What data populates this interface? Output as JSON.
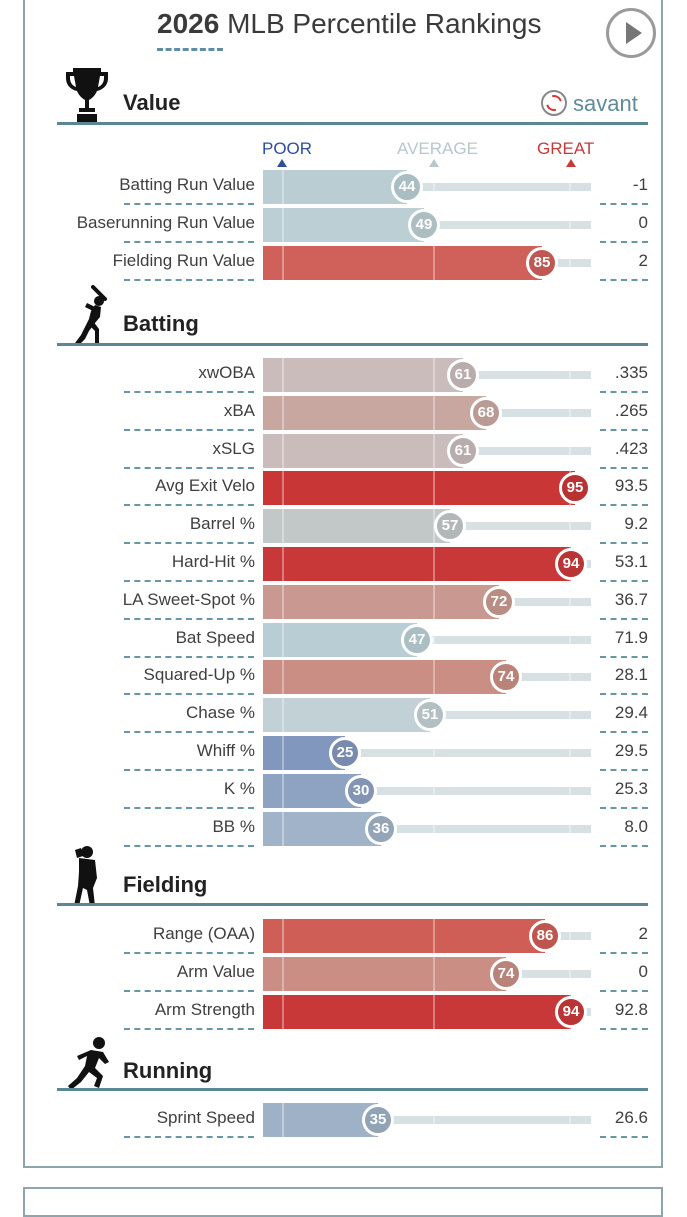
{
  "header": {
    "year": "2026",
    "title_rest": "MLB Percentile Rankings"
  },
  "brand": {
    "savant_label": "savant"
  },
  "scale": {
    "poor": "POOR",
    "average": "AVERAGE",
    "great": "GREAT"
  },
  "sections": {
    "value": {
      "title": "Value",
      "rows": [
        {
          "label": "Batting Run Value",
          "pct": 44,
          "value": "-1",
          "color": "#b9cdd3"
        },
        {
          "label": "Baserunning Run Value",
          "pct": 49,
          "value": "0",
          "color": "#bccfd4"
        },
        {
          "label": "Fielding Run Value",
          "pct": 85,
          "value": "2",
          "color": "#d0605a"
        }
      ]
    },
    "batting": {
      "title": "Batting",
      "rows": [
        {
          "label": "xwOBA",
          "pct": 61,
          "value": ".335",
          "color": "#c9bcbb"
        },
        {
          "label": "xBA",
          "pct": 68,
          "value": ".265",
          "color": "#c9a7a1"
        },
        {
          "label": "xSLG",
          "pct": 61,
          "value": ".423",
          "color": "#c9bcbb"
        },
        {
          "label": "Avg Exit Velo",
          "pct": 95,
          "value": "93.5",
          "color": "#c93636"
        },
        {
          "label": "Barrel %",
          "pct": 57,
          "value": "9.2",
          "color": "#c2c8c8"
        },
        {
          "label": "Hard-Hit %",
          "pct": 94,
          "value": "53.1",
          "color": "#c93838"
        },
        {
          "label": "LA Sweet-Spot %",
          "pct": 72,
          "value": "36.7",
          "color": "#c99890"
        },
        {
          "label": "Bat Speed",
          "pct": 47,
          "value": "71.9",
          "color": "#b9ced4"
        },
        {
          "label": "Squared-Up %",
          "pct": 74,
          "value": "28.1",
          "color": "#ca8e85"
        },
        {
          "label": "Chase %",
          "pct": 51,
          "value": "29.4",
          "color": "#c1d1d5"
        },
        {
          "label": "Whiff %",
          "pct": 25,
          "value": "29.5",
          "color": "#8297bd"
        },
        {
          "label": "K %",
          "pct": 30,
          "value": "25.3",
          "color": "#8ea2c2"
        },
        {
          "label": "BB %",
          "pct": 36,
          "value": "8.0",
          "color": "#a1b3c8"
        }
      ]
    },
    "fielding": {
      "title": "Fielding",
      "rows": [
        {
          "label": "Range (OAA)",
          "pct": 86,
          "value": "2",
          "color": "#cf5e56"
        },
        {
          "label": "Arm Value",
          "pct": 74,
          "value": "0",
          "color": "#ca8e85"
        },
        {
          "label": "Arm Strength",
          "pct": 94,
          "value": "92.8",
          "color": "#c93838"
        }
      ]
    },
    "running": {
      "title": "Running",
      "rows": [
        {
          "label": "Sprint Speed",
          "pct": 35,
          "value": "26.6",
          "color": "#9eb1c6"
        }
      ]
    }
  },
  "chart_data": {
    "type": "bar",
    "title": "2026 MLB Percentile Rankings",
    "categories": [
      "Batting Run Value",
      "Baserunning Run Value",
      "Fielding Run Value",
      "xwOBA",
      "xBA",
      "xSLG",
      "Avg Exit Velo",
      "Barrel %",
      "Hard-Hit %",
      "LA Sweet-Spot %",
      "Bat Speed",
      "Squared-Up %",
      "Chase %",
      "Whiff %",
      "K %",
      "BB %",
      "Range (OAA)",
      "Arm Value",
      "Arm Strength",
      "Sprint Speed"
    ],
    "series": [
      {
        "name": "",
        "values": [
          44,
          49,
          85,
          61,
          68,
          61,
          95,
          57,
          94,
          72,
          47,
          74,
          51,
          25,
          30,
          36,
          86,
          74,
          94,
          35
        ]
      }
    ],
    "stat_values": [
      "-1",
      "0",
      "2",
      ".335",
      ".265",
      ".423",
      "93.5",
      "9.2",
      "53.1",
      "36.7",
      "71.9",
      "28.1",
      "29.4",
      "29.5",
      "25.3",
      "8.0",
      "2",
      "0",
      "92.8",
      "26.6"
    ],
    "xlim": [
      0,
      100
    ],
    "orientation": "horizontal",
    "grid": false
  }
}
